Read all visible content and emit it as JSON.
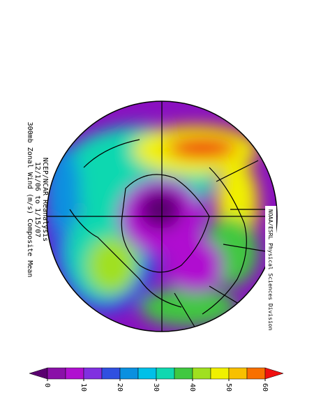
{
  "title": {
    "line1": "300mb Zonal Wind (m/s) Composite Mean",
    "line2": "12/1/06  to  1/15/07",
    "line3": "NCEP/NCAR Reanalysis"
  },
  "credit": "NOAA/ESRL Physical Sciences Division",
  "colorbar": {
    "lim": [
      -5,
      65
    ],
    "ticks": [
      0,
      10,
      20,
      30,
      40,
      50,
      60
    ],
    "colors": [
      "#5a0070",
      "#8a10a8",
      "#b010d0",
      "#8030e0",
      "#3050e0",
      "#0a90e0",
      "#00c0e8",
      "#10d8b0",
      "#40c840",
      "#a0e020",
      "#f0f000",
      "#f8c000",
      "#f87000",
      "#f01010"
    ]
  }
}
